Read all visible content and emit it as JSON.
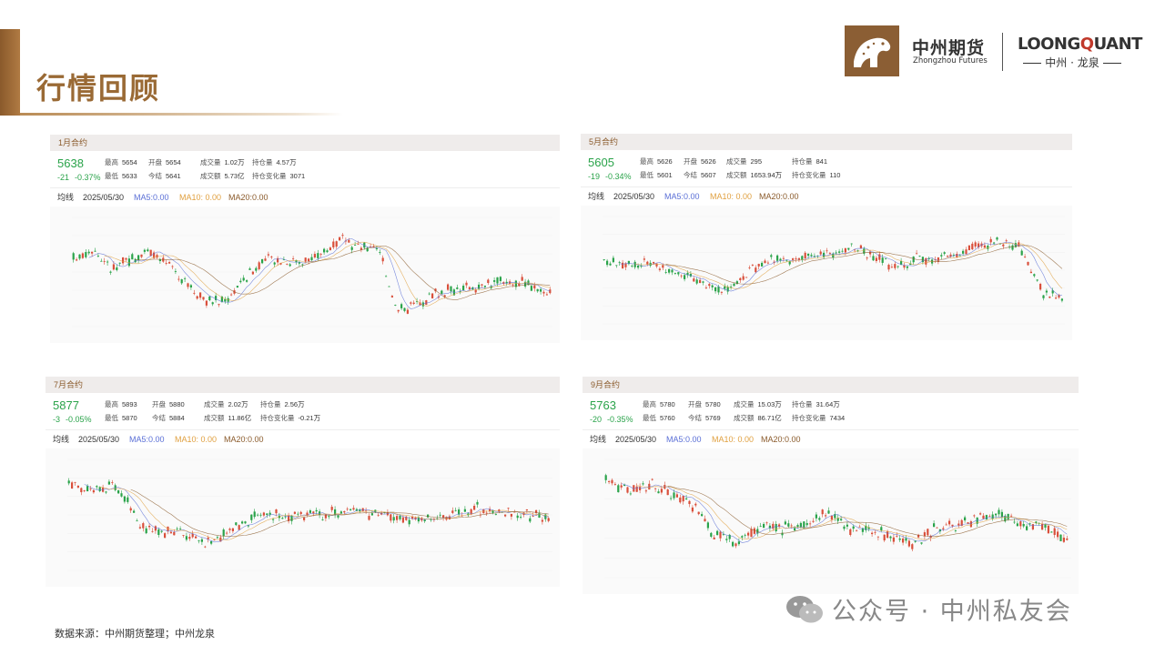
{
  "header": {
    "title": "行情回顾",
    "logo_zz_cn": "中州期货",
    "logo_zz_en": "Zhongzhou Futures",
    "logo_lq_a": "LOONG",
    "logo_lq_q": "Q",
    "logo_lq_b": "UANT",
    "logo_lq_sub": "中州 · 龙泉"
  },
  "colors": {
    "up": "#d94f3b",
    "down": "#2aa34a",
    "accent": "#8a5a2b"
  },
  "panels": [
    {
      "name": "1月合约",
      "price": "5638",
      "change": "-21",
      "change_pct": "-0.37%",
      "labels": {
        "high": "最高",
        "open": "开盘",
        "vol": "成交量",
        "oi": "持仓量",
        "low": "最低",
        "settle": "今结",
        "amount": "成交额",
        "oi_chg": "持仓变化量"
      },
      "high": "5654",
      "open": "5654",
      "vol": "1.02万",
      "oi": "4.57万",
      "low": "5633",
      "settle": "5641",
      "amount": "5.73亿",
      "oi_chg": "3071",
      "ma_label": "均线",
      "date": "2025/05/30",
      "ma5": "MA5:0.00",
      "ma10": "MA10: 0.00",
      "ma20": "MA20:0.00"
    },
    {
      "name": "5月合约",
      "price": "5605",
      "change": "-19",
      "change_pct": "-0.34%",
      "labels": {
        "high": "最高",
        "open": "开盘",
        "vol": "成交量",
        "oi": "持仓量",
        "low": "最低",
        "settle": "今结",
        "amount": "成交额",
        "oi_chg": "持仓变化量"
      },
      "high": "5626",
      "open": "5626",
      "vol": "295",
      "oi": "841",
      "low": "5601",
      "settle": "5607",
      "amount": "1653.94万",
      "oi_chg": "110",
      "ma_label": "均线",
      "date": "2025/05/30",
      "ma5": "MA5:0.00",
      "ma10": "MA10: 0.00",
      "ma20": "MA20:0.00"
    },
    {
      "name": "7月合约",
      "price": "5877",
      "change": "-3",
      "change_pct": "-0.05%",
      "labels": {
        "high": "最高",
        "open": "开盘",
        "vol": "成交量",
        "oi": "持仓量",
        "low": "最低",
        "settle": "今结",
        "amount": "成交额",
        "oi_chg": "持仓变化量"
      },
      "high": "5893",
      "open": "5880",
      "vol": "2.02万",
      "oi": "2.56万",
      "low": "5870",
      "settle": "5884",
      "amount": "11.86亿",
      "oi_chg": "-0.21万",
      "ma_label": "均线",
      "date": "2025/05/30",
      "ma5": "MA5:0.00",
      "ma10": "MA10: 0.00",
      "ma20": "MA20:0.00"
    },
    {
      "name": "9月合约",
      "price": "5763",
      "change": "-20",
      "change_pct": "-0.35%",
      "labels": {
        "high": "最高",
        "open": "开盘",
        "vol": "成交量",
        "oi": "持仓量",
        "low": "最低",
        "settle": "今结",
        "amount": "成交额",
        "oi_chg": "持仓变化量"
      },
      "high": "5780",
      "open": "5780",
      "vol": "15.03万",
      "oi": "31.64万",
      "low": "5760",
      "settle": "5769",
      "amount": "86.71亿",
      "oi_chg": "7434",
      "ma_label": "均线",
      "date": "2025/05/30",
      "ma5": "MA5:0.00",
      "ma10": "MA10: 0.00",
      "ma20": "MA20:0.00"
    }
  ],
  "footer": {
    "source": "数据来源：中州期货整理；中州龙泉",
    "wechat": "公众号 · 中州私友会"
  }
}
